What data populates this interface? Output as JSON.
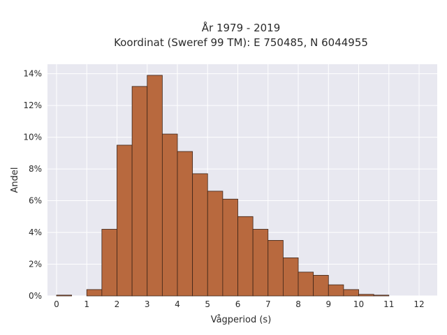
{
  "chart_data": {
    "type": "bar",
    "title_lines": [
      "År 1979 - 2019",
      "Koordinat (Sweref 99 TM): E 750485, N 6044955"
    ],
    "xlabel": "Vågperiod (s)",
    "ylabel": "Andel",
    "bin_width": 0.5,
    "bin_starts": [
      0,
      0.5,
      1,
      1.5,
      2,
      2.5,
      3,
      3.5,
      4,
      4.5,
      5,
      5.5,
      6,
      6.5,
      7,
      7.5,
      8,
      8.5,
      9,
      9.5,
      10,
      10.5,
      11,
      11.5
    ],
    "values": [
      0.05,
      0.0,
      0.4,
      4.2,
      9.5,
      13.2,
      13.9,
      10.2,
      9.1,
      7.7,
      6.6,
      6.1,
      5.0,
      4.2,
      3.5,
      2.4,
      1.5,
      1.3,
      0.7,
      0.4,
      0.1,
      0.05,
      0.0,
      0.0
    ],
    "xlim": [
      -0.3,
      12.6
    ],
    "ylim": [
      0,
      14.6
    ],
    "x_ticks": [
      0,
      1,
      2,
      3,
      4,
      5,
      6,
      7,
      8,
      9,
      10,
      11,
      12
    ],
    "y_ticks": [
      0,
      2,
      4,
      6,
      8,
      10,
      12,
      14
    ],
    "y_tick_suffix": "%",
    "grid": true,
    "colors": {
      "bar_fill": "#b8693e",
      "bar_edge": "#3c2418",
      "plot_bg": "#e8e8f0",
      "grid": "#ffffff"
    }
  }
}
